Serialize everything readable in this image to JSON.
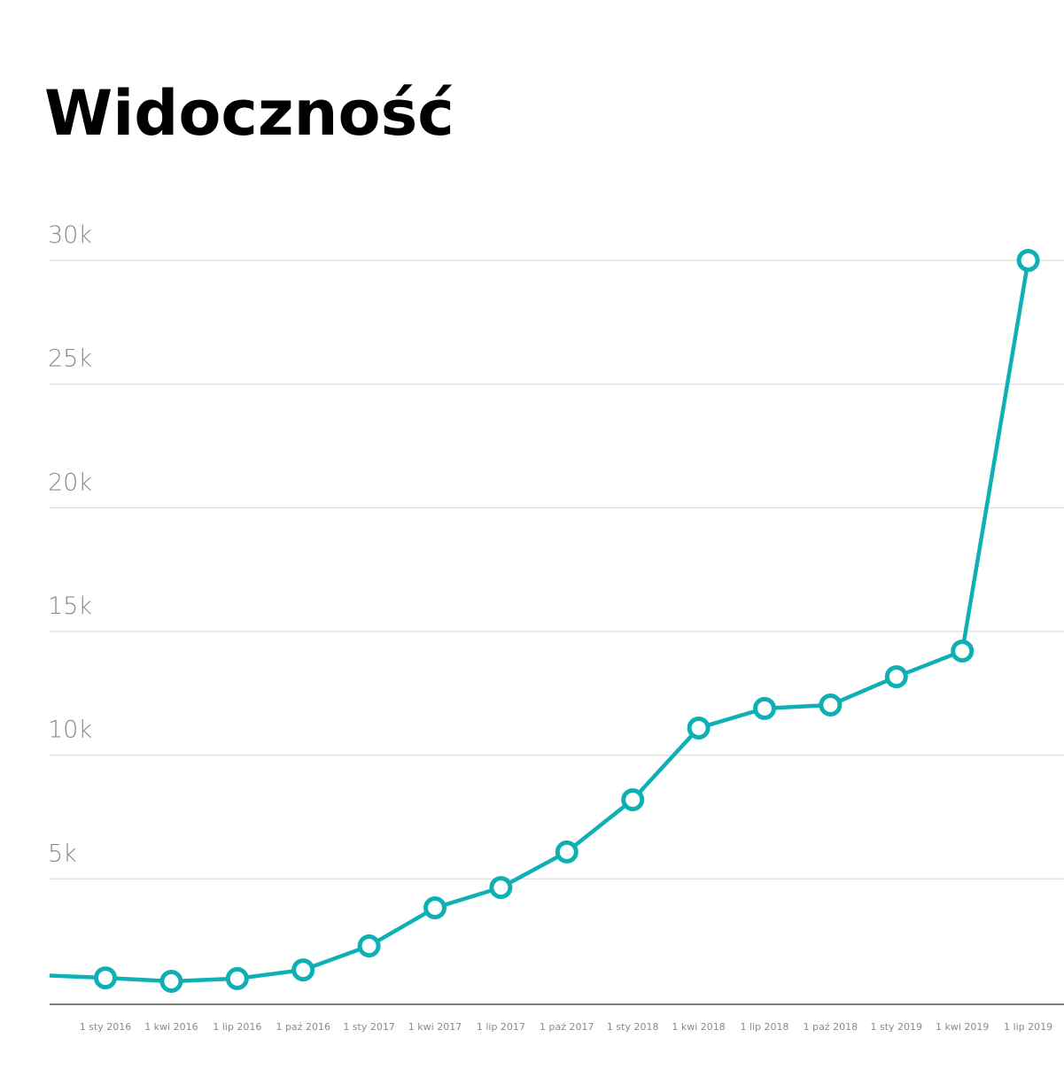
{
  "chart_data": {
    "type": "line",
    "title": "Widoczność",
    "categories": [
      null,
      "1 sty 2016",
      "1 kwi 2016",
      "1 lip 2016",
      "1 paź 2016",
      "1 sty 2017",
      "1 kwi 2017",
      "1 lip 2017",
      "1 paź 2017",
      "1 sty 2018",
      "1 kwi 2018",
      "1 lip 2018",
      "1 paź 2018",
      "1 sty 2019",
      "1 kwi 2019",
      "1 lip 2019"
    ],
    "values": [
      1110,
      1000,
      860,
      970,
      1320,
      2290,
      3830,
      4650,
      6090,
      8200,
      11100,
      11890,
      12030,
      13170,
      14210,
      30000
    ],
    "color": "#0fb0b5",
    "ylim": [
      0,
      30000
    ],
    "yticks": [
      {
        "value": 5000,
        "label": "5k"
      },
      {
        "value": 10000,
        "label": "10k"
      },
      {
        "value": 15000,
        "label": "15k"
      },
      {
        "value": 20000,
        "label": "20k"
      },
      {
        "value": 25000,
        "label": "25k"
      },
      {
        "value": 30000,
        "label": "30k"
      }
    ],
    "grid": true
  }
}
